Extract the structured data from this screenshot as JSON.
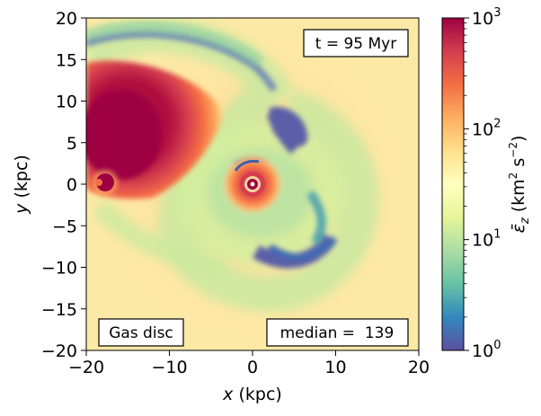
{
  "chart_data": {
    "type": "heatmap",
    "x_axis": {
      "label_var": "x",
      "label_unit": "(kpc)",
      "range": [
        -20,
        20
      ],
      "ticks": [
        -20,
        -10,
        0,
        10,
        20
      ],
      "tick_labels": [
        "−20",
        "−10",
        "0",
        "10",
        "20"
      ]
    },
    "y_axis": {
      "label_var": "y",
      "label_unit": "(kpc)",
      "range": [
        -20,
        20
      ],
      "ticks": [
        -20,
        -15,
        -10,
        -5,
        0,
        5,
        10,
        15,
        20
      ],
      "tick_labels": [
        "−20",
        "−15",
        "−10",
        "−5",
        "0",
        "5",
        "10",
        "15",
        "20"
      ]
    },
    "colorbar": {
      "scale": "log",
      "range": [
        1,
        1000
      ],
      "major_ticks": [
        1,
        10,
        100,
        1000
      ],
      "tick_base": "10",
      "tick_exponents": [
        "0",
        "1",
        "2",
        "3"
      ],
      "label_symbol": "ε̄",
      "label_sub": "z",
      "label_unit_prefix": "(km",
      "label_unit_exp1": "2",
      "label_unit_mid": " s",
      "label_unit_exp2": "−2",
      "label_unit_suffix": ")",
      "colormap": "Spectral_r",
      "stops": [
        "#5e4fa2",
        "#3288bd",
        "#66c2a5",
        "#abdda4",
        "#e6f598",
        "#ffffbf",
        "#fee08b",
        "#fdae61",
        "#f46d43",
        "#d53e4f",
        "#9e0142"
      ]
    },
    "annotations": {
      "time_label": "t = 95 Myr",
      "name_label": "Gas disc",
      "median_label": "median =  139"
    },
    "features": [
      {
        "kind": "hot_blob",
        "x": -16,
        "y": 5.5,
        "value": 1000
      },
      {
        "kind": "hot_core",
        "x": 0,
        "y": 0,
        "value": 1000
      },
      {
        "kind": "hot_satellite",
        "x": -18,
        "y": 0,
        "value": 1000
      },
      {
        "kind": "cold_arc",
        "x": 3,
        "y": 5.5,
        "value": 1.5
      },
      {
        "kind": "cold_arc",
        "x": 6.5,
        "y": -10,
        "value": 1.5
      }
    ]
  }
}
